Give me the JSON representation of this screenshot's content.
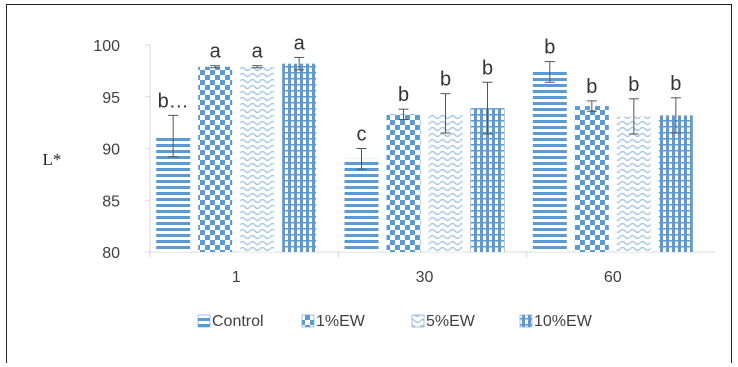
{
  "chart_data": {
    "type": "bar",
    "ylabel": "L*",
    "xlabel": "",
    "ylim": [
      80,
      100
    ],
    "yticks": [
      80,
      85,
      90,
      95,
      100
    ],
    "categories": [
      "1",
      "30",
      "60"
    ],
    "series": [
      {
        "name": "Control",
        "pattern": "hstripe",
        "values": [
          91.2,
          89.0,
          97.4
        ],
        "errors": [
          2.0,
          1.0,
          1.0
        ],
        "sig": [
          "b…",
          "c",
          "b"
        ]
      },
      {
        "name": "1%EW",
        "pattern": "check",
        "values": [
          97.9,
          93.3,
          94.1
        ],
        "errors": [
          0.1,
          0.5,
          0.5
        ],
        "sig": [
          "a",
          "b",
          "b"
        ]
      },
      {
        "name": "5%EW",
        "pattern": "wave",
        "values": [
          97.9,
          93.4,
          93.1
        ],
        "errors": [
          0.1,
          1.9,
          1.7
        ],
        "sig": [
          "a",
          "b",
          "b"
        ]
      },
      {
        "name": "10%EW",
        "pattern": "grid",
        "values": [
          98.2,
          93.9,
          93.2
        ],
        "errors": [
          0.6,
          2.5,
          1.7
        ],
        "sig": [
          "a",
          "b",
          "b"
        ]
      }
    ],
    "colors": {
      "bar_dark": "#5b9bd5",
      "bar_light": "#ffffff",
      "axis": "#d9d9d9",
      "text": "#404040"
    },
    "legend_position": "bottom",
    "grid": false
  }
}
